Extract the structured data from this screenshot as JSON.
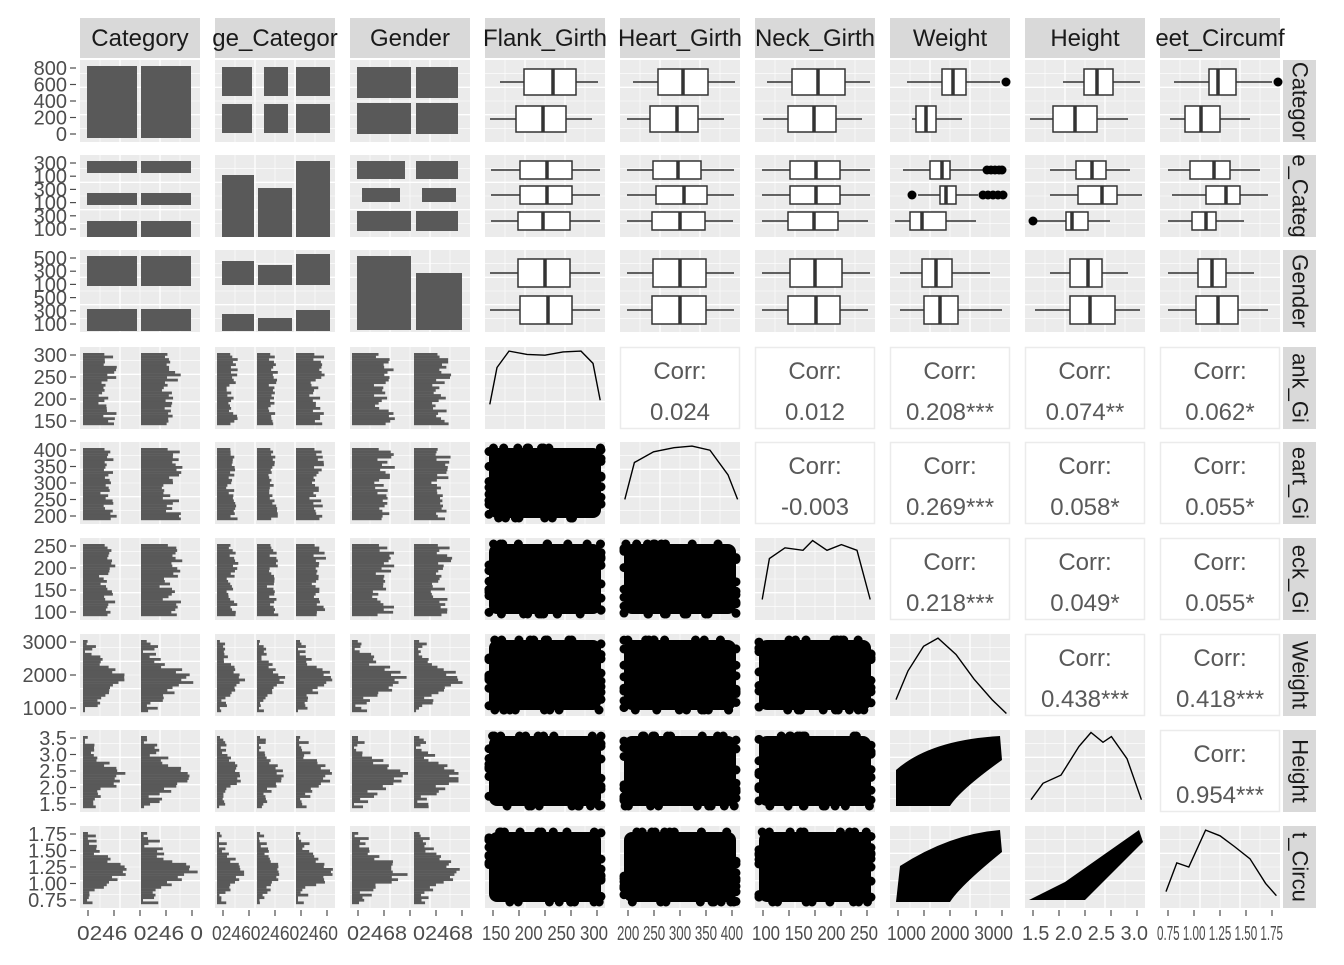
{
  "chart_data": {
    "type": "scatter-matrix",
    "title": "",
    "variables": [
      "Category",
      "Age_Category",
      "Gender",
      "Flank_Girth",
      "Heart_Girth",
      "Neck_Girth",
      "Weight",
      "Height",
      "Feet_Circumference"
    ],
    "column_strip_labels": [
      "Category",
      "ge_Categor",
      "Gender",
      "Flank_Girth",
      "Heart_Girth",
      "Neck_Girth",
      "Weight",
      "Height",
      "eet_Circumf"
    ],
    "row_strip_labels": [
      "Categor",
      "e_Categ",
      "Gender",
      "ank_Gi",
      "eart_Gi",
      "eck_Gi",
      "Weight",
      "Height",
      "t_Circu"
    ],
    "correlations": [
      {
        "x": "Flank_Girth",
        "y": "Heart_Girth",
        "label": "Corr:",
        "value": "0.024"
      },
      {
        "x": "Flank_Girth",
        "y": "Neck_Girth",
        "label": "Corr:",
        "value": "0.012"
      },
      {
        "x": "Flank_Girth",
        "y": "Weight",
        "label": "Corr:",
        "value": "0.208***"
      },
      {
        "x": "Flank_Girth",
        "y": "Height",
        "label": "Corr:",
        "value": "0.074**"
      },
      {
        "x": "Flank_Girth",
        "y": "Feet_Circumference",
        "label": "Corr:",
        "value": "0.062*"
      },
      {
        "x": "Heart_Girth",
        "y": "Neck_Girth",
        "label": "Corr:",
        "value": "-0.003"
      },
      {
        "x": "Heart_Girth",
        "y": "Weight",
        "label": "Corr:",
        "value": "0.269***"
      },
      {
        "x": "Heart_Girth",
        "y": "Height",
        "label": "Corr:",
        "value": "0.058*"
      },
      {
        "x": "Heart_Girth",
        "y": "Feet_Circumference",
        "label": "Corr:",
        "value": "0.055*"
      },
      {
        "x": "Neck_Girth",
        "y": "Weight",
        "label": "Corr:",
        "value": "0.218***"
      },
      {
        "x": "Neck_Girth",
        "y": "Height",
        "label": "Corr:",
        "value": "0.049*"
      },
      {
        "x": "Neck_Girth",
        "y": "Feet_Circumference",
        "label": "Corr:",
        "value": "0.055*"
      },
      {
        "x": "Weight",
        "y": "Height",
        "label": "Corr:",
        "value": "0.438***"
      },
      {
        "x": "Weight",
        "y": "Feet_Circumference",
        "label": "Corr:",
        "value": "0.418***"
      },
      {
        "x": "Height",
        "y": "Feet_Circumference",
        "label": "Corr:",
        "value": "0.954***"
      }
    ],
    "y_axis_ticks": [
      [
        "800",
        "600",
        "400",
        "200",
        "0"
      ],
      [
        "300",
        "100",
        "300",
        "100",
        "300",
        "100"
      ],
      [
        "500",
        "300",
        "100",
        "500",
        "300",
        "100"
      ],
      [
        "300",
        "250",
        "200",
        "150"
      ],
      [
        "400",
        "350",
        "300",
        "250",
        "200"
      ],
      [
        "250",
        "200",
        "150",
        "100"
      ],
      [
        "3000",
        "2000",
        "1000"
      ],
      [
        "3.5",
        "3.0",
        "2.5",
        "2.0",
        "1.5"
      ],
      [
        "1.75",
        "1.50",
        "1.25",
        "1.00",
        "0.75"
      ]
    ],
    "x_axis_ticks": [
      "0246 0246 0",
      "0246024602460",
      "02468 02468",
      "150 200 250 300",
      "200 250 300 350 400",
      "100 150 200 250",
      "1000 2000 3000",
      "1.5 2.0 2.5 3.0",
      "0.75 1.00 1.25 1.50 1.75"
    ],
    "bar_counts": {
      "category_by_category": [
        830,
        830
      ],
      "age_by_age_level_values": [
        [
          400,
          400,
          400
        ],
        [
          300,
          230,
          400
        ],
        [
          340,
          250,
          330
        ]
      ]
    },
    "grid": true,
    "legend": "none"
  }
}
